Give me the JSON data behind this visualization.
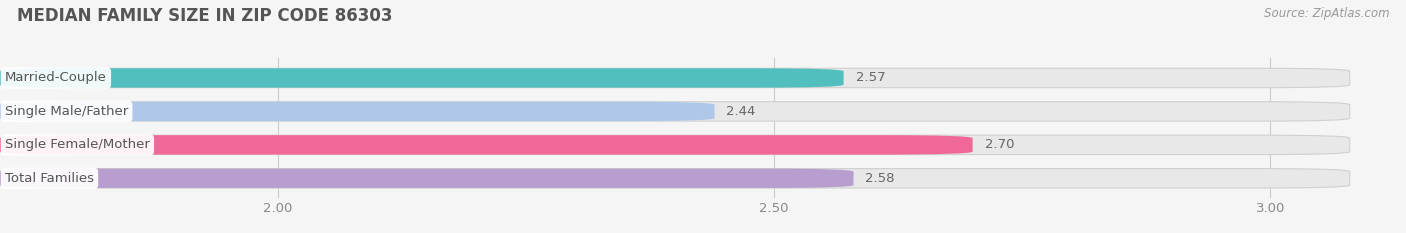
{
  "title": "MEDIAN FAMILY SIZE IN ZIP CODE 86303",
  "source": "Source: ZipAtlas.com",
  "categories": [
    "Married-Couple",
    "Single Male/Father",
    "Single Female/Mother",
    "Total Families"
  ],
  "values": [
    2.57,
    2.44,
    2.7,
    2.58
  ],
  "bar_colors": [
    "#52bfbf",
    "#afc8ea",
    "#f06898",
    "#b89ece"
  ],
  "bar_bg_color": "#e8e8e8",
  "bar_border_color": "#d0d0d0",
  "xlim_data": [
    1.72,
    3.08
  ],
  "x_axis_min": 1.72,
  "xticks": [
    2.0,
    2.5,
    3.0
  ],
  "xtick_labels": [
    "2.00",
    "2.50",
    "3.00"
  ],
  "label_fontsize": 9.5,
  "value_fontsize": 9.5,
  "title_fontsize": 12,
  "source_fontsize": 8.5,
  "background_color": "#f5f5f5",
  "title_color": "#555555",
  "source_color": "#999999",
  "tick_color": "#888888",
  "value_color": "#666666",
  "label_color": "#555555"
}
